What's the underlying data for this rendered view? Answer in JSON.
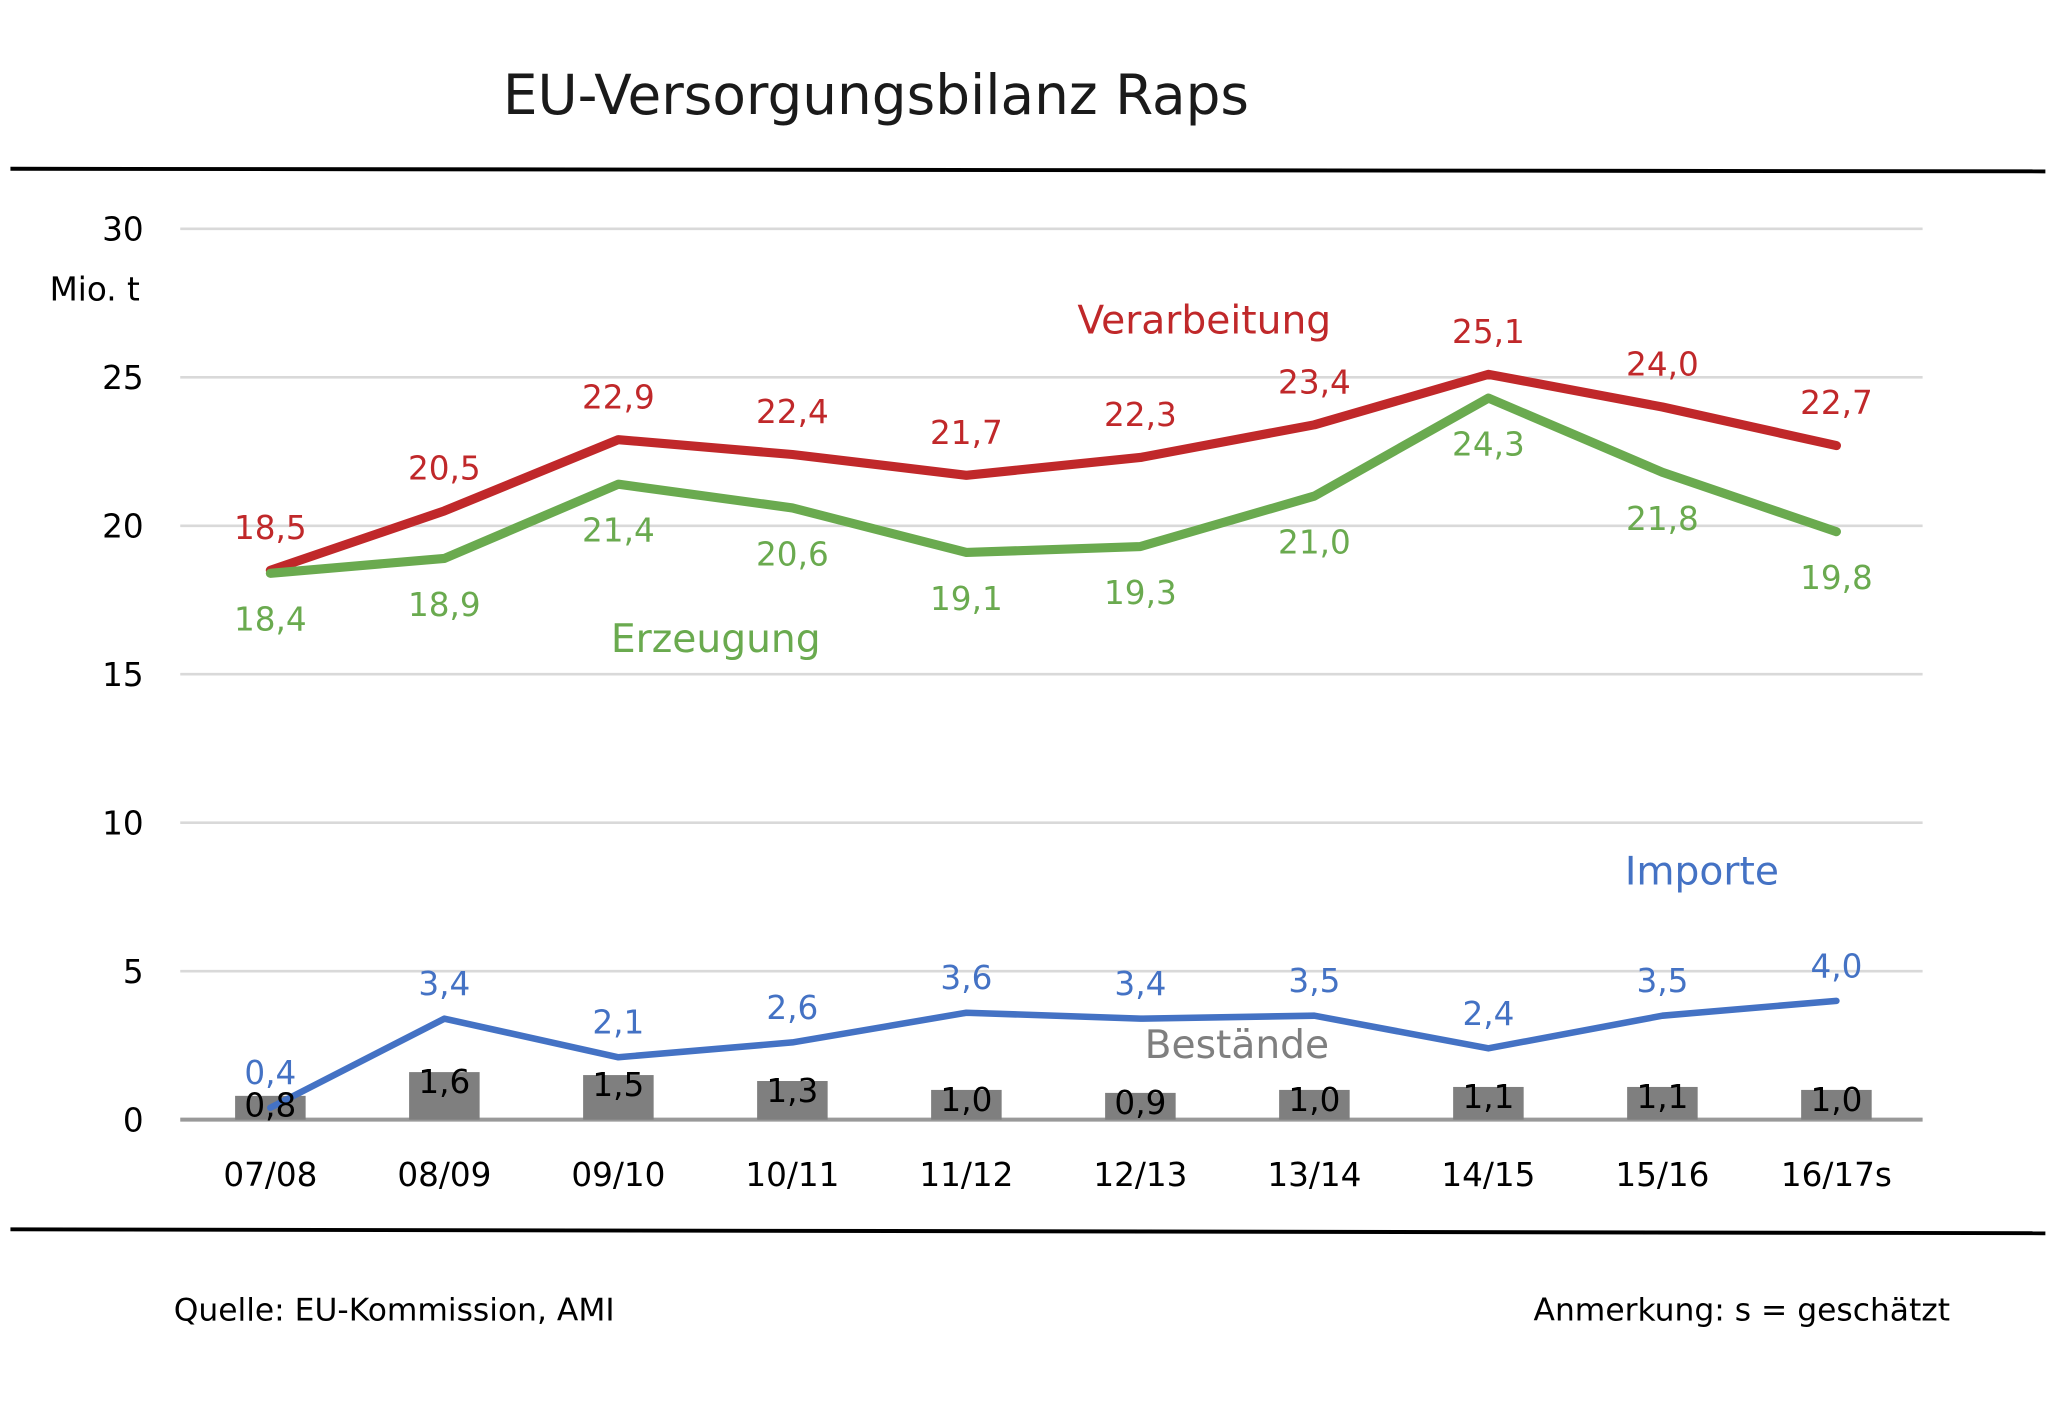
{
  "chart_data": {
    "type": "line",
    "title": "EU-Versorgungsbilanz Raps",
    "ylabel": "Mio. t",
    "xlabel": "",
    "ylim": [
      0,
      30
    ],
    "yticks": [
      "0",
      "5",
      "10",
      "15",
      "20",
      "25",
      "30"
    ],
    "ytick_values": [
      0,
      5,
      10,
      15,
      20,
      25,
      30
    ],
    "grid": true,
    "categories": [
      "07/08",
      "08/09",
      "09/10",
      "10/11",
      "11/12",
      "12/13",
      "13/14",
      "14/15",
      "15/16",
      "16/17s"
    ],
    "series": [
      {
        "name": "Verarbeitung",
        "type": "line",
        "color": "#c0282a",
        "values": [
          18.5,
          20.5,
          22.9,
          22.4,
          21.7,
          22.3,
          23.4,
          25.1,
          24.0,
          22.7
        ],
        "labels": [
          "18,5",
          "20,5",
          "22,9",
          "22,4",
          "21,7",
          "22,3",
          "23,4",
          "25,1",
          "24,0",
          "22,7"
        ]
      },
      {
        "name": "Erzeugung",
        "type": "line",
        "color": "#6aaa4f",
        "values": [
          18.4,
          18.9,
          21.4,
          20.6,
          19.1,
          19.3,
          21.0,
          24.3,
          21.8,
          19.8
        ],
        "labels": [
          "18,4",
          "18,9",
          "21,4",
          "20,6",
          "19,1",
          "19,3",
          "21,0",
          "24,3",
          "21,8",
          "19,8"
        ]
      },
      {
        "name": "Importe",
        "type": "line",
        "color": "#4472c4",
        "values": [
          0.4,
          3.4,
          2.1,
          2.6,
          3.6,
          3.4,
          3.5,
          2.4,
          3.5,
          4.0
        ],
        "labels": [
          "0,4",
          "3,4",
          "2,1",
          "2,6",
          "3,6",
          "3,4",
          "3,5",
          "2,4",
          "3,5",
          "4,0"
        ]
      },
      {
        "name": "Bestände",
        "type": "bar",
        "color": "#7f7f7f",
        "values": [
          0.8,
          1.6,
          1.5,
          1.3,
          1.0,
          0.9,
          1.0,
          1.1,
          1.1,
          1.0
        ],
        "labels": [
          "0,8",
          "1,6",
          "1,5",
          "1,3",
          "1,0",
          "0,9",
          "1,0",
          "1,1",
          "1,1",
          "1,0"
        ]
      }
    ]
  },
  "footer": {
    "source": "Quelle: EU-Kommission, AMI",
    "note": "Anmerkung: s = geschätzt"
  }
}
